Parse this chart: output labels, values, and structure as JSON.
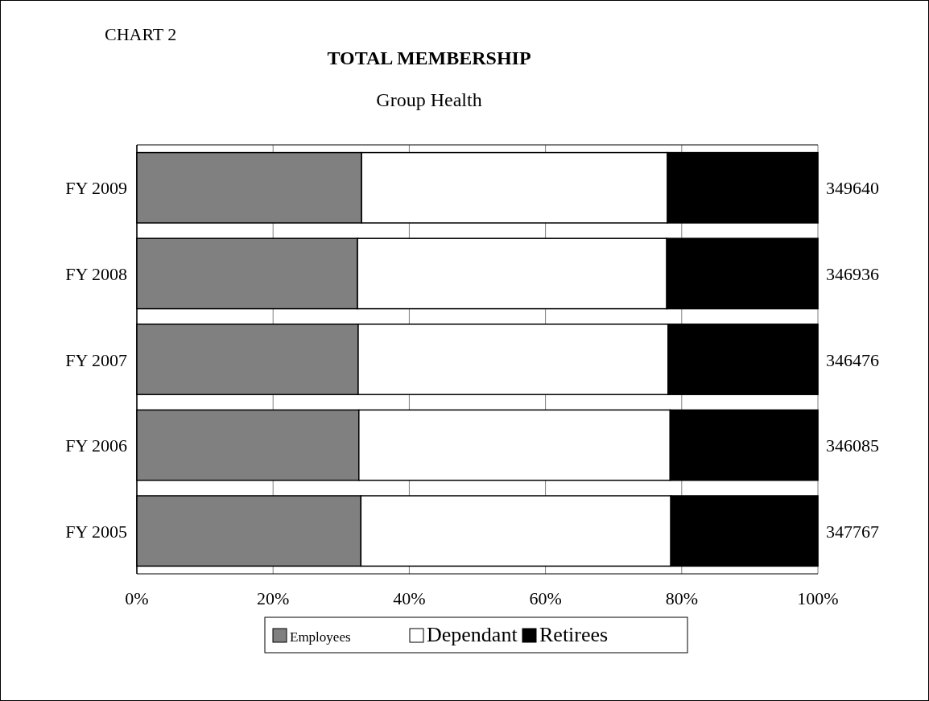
{
  "chart_data": {
    "type": "bar",
    "orientation": "horizontal",
    "stacked": true,
    "title": "TOTAL MEMBERSHIP",
    "subtitle": "Group Health",
    "annotations": [
      "CHART 2",
      "349640",
      "346936",
      "346476",
      "346085",
      "347767"
    ],
    "categories": [
      "FY 2009",
      "FY 2008",
      "FY 2007",
      "FY 2006",
      "FY 2005"
    ],
    "series": [
      {
        "name": "Employees",
        "color": "#808080",
        "values": [
          33.0,
          32.4,
          32.5,
          32.6,
          32.9
        ]
      },
      {
        "name": "Dependant",
        "color": "#ffffff",
        "values": [
          44.9,
          45.4,
          45.5,
          45.7,
          45.5
        ]
      },
      {
        "name": "Retirees",
        "color": "#000000",
        "values": [
          22.1,
          22.2,
          22.0,
          21.7,
          21.6
        ]
      }
    ],
    "xlim": [
      0,
      100
    ],
    "xticks": [
      {
        "value": 0,
        "label": "0%"
      },
      {
        "value": 20,
        "label": "20%"
      },
      {
        "value": 40,
        "label": "40%"
      },
      {
        "value": 60,
        "label": "60%"
      },
      {
        "value": 80,
        "label": "80%"
      },
      {
        "value": 100,
        "label": "100%"
      }
    ],
    "grid": "x",
    "legend": "bottom"
  }
}
